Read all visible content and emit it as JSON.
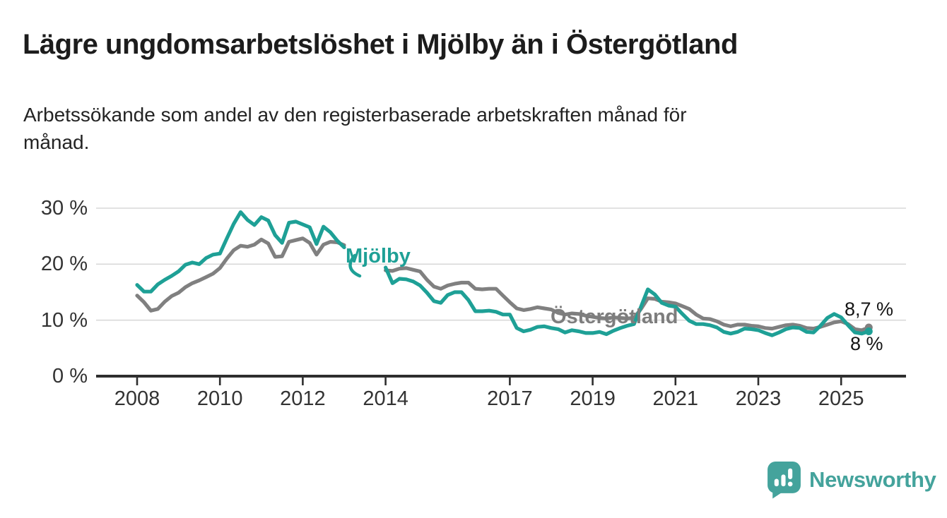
{
  "header": {
    "title": "Lägre ungdomsarbetslöshet i Mjölby än i Östergötland",
    "subtitle": "Arbetssökande som andel av den registerbaserade arbetskraften månad för månad.",
    "subtitle_lines": [
      "Arbetssökande som andel av den registerbaserade arbetskraften månad för",
      "månad."
    ]
  },
  "colors": {
    "mjolby": "#1ea096",
    "ostergotland": "#808080",
    "ostergotland_label": "#7d7d7d",
    "grid": "#d9d9d9",
    "axis": "#2e2e2e",
    "text": "#1c1c1c",
    "logo": "#44a39c"
  },
  "annotations": {
    "mjolby_label": "Mjölby",
    "ostergotland_label": "Östergötland",
    "ostergotland_end_value": "8,7 %",
    "mjolby_end_value": "8 %"
  },
  "footer": {
    "brand": "Newsworthy"
  },
  "chart_data": {
    "type": "line",
    "title": "Lägre ungdomsarbetslöshet i Mjölby än i Östergötland",
    "x_start": 2008,
    "x_step_months": 2,
    "x_gap_note": "no data during 2013",
    "x_ticks": [
      2008,
      2010,
      2012,
      2014,
      2017,
      2019,
      2021,
      2023,
      2025
    ],
    "y_ticks": [
      {
        "value": 0,
        "label": "0 %"
      },
      {
        "value": 10,
        "label": "10 %"
      },
      {
        "value": 20,
        "label": "20 %"
      },
      {
        "value": 30,
        "label": "30 %"
      }
    ],
    "ylim": [
      0,
      31.5
    ],
    "xlim": [
      2007,
      2026.6
    ],
    "grid": "horizontal",
    "legend": "inline-labels",
    "unit": "%",
    "series": [
      {
        "name": "Mjölby",
        "color": "#1ea096",
        "end_label": "8 %",
        "values": [
          16.3,
          15.1,
          15.1,
          16.4,
          17.2,
          17.9,
          18.7,
          19.9,
          20.3,
          20.0,
          21.1,
          21.7,
          21.9,
          24.6,
          27.2,
          29.3,
          27.9,
          27.0,
          28.4,
          27.8,
          25.2,
          23.8,
          27.4,
          27.6,
          27.1,
          26.6,
          23.6,
          26.7,
          25.7,
          24.2,
          23.0,
          null,
          null,
          null,
          null,
          null,
          19.4,
          16.6,
          17.4,
          17.3,
          16.9,
          16.2,
          14.9,
          13.4,
          13.1,
          14.5,
          15.0,
          15.0,
          13.6,
          11.6,
          11.6,
          11.7,
          11.5,
          11.0,
          11.0,
          8.6,
          8.0,
          8.3,
          8.8,
          8.9,
          8.6,
          8.4,
          7.8,
          8.2,
          8.0,
          7.7,
          7.7,
          7.9,
          7.5,
          8.1,
          8.6,
          9.0,
          9.3,
          12.4,
          15.5,
          14.6,
          13.1,
          12.6,
          12.4,
          11.1,
          9.9,
          9.3,
          9.3,
          9.1,
          8.7,
          7.9,
          7.6,
          7.9,
          8.5,
          8.4,
          8.2,
          7.7,
          7.3,
          7.8,
          8.4,
          8.7,
          8.6,
          7.9,
          7.8,
          9.0,
          10.4,
          11.1,
          10.5,
          9.1,
          7.8,
          7.6,
          8.0
        ]
      },
      {
        "name": "Östergötland",
        "color": "#808080",
        "end_label": "8,7 %",
        "values": [
          14.4,
          13.2,
          11.7,
          12.0,
          13.3,
          14.3,
          14.9,
          15.9,
          16.6,
          17.1,
          17.7,
          18.3,
          19.3,
          21.0,
          22.5,
          23.3,
          23.1,
          23.5,
          24.4,
          23.7,
          21.3,
          21.4,
          24.0,
          24.3,
          24.6,
          23.8,
          21.7,
          23.5,
          24.0,
          23.9,
          23.4,
          null,
          null,
          null,
          null,
          null,
          18.9,
          18.8,
          19.2,
          19.3,
          19.0,
          18.7,
          17.2,
          16.0,
          15.6,
          16.2,
          16.5,
          16.7,
          16.7,
          15.6,
          15.5,
          15.6,
          15.6,
          14.4,
          13.2,
          12.1,
          11.8,
          12.0,
          12.3,
          12.1,
          11.9,
          11.3,
          11.0,
          11.2,
          11.1,
          10.8,
          10.6,
          10.4,
          10.3,
          10.5,
          10.4,
          10.3,
          10.4,
          12.0,
          13.9,
          13.8,
          13.3,
          13.2,
          13.0,
          12.5,
          12.0,
          11.0,
          10.3,
          10.2,
          9.8,
          9.2,
          8.9,
          9.2,
          9.2,
          9.0,
          8.9,
          8.6,
          8.5,
          8.8,
          9.1,
          9.2,
          9.0,
          8.6,
          8.5,
          8.8,
          9.2,
          9.6,
          9.8,
          9.3,
          8.4,
          8.2,
          8.7
        ]
      }
    ]
  }
}
